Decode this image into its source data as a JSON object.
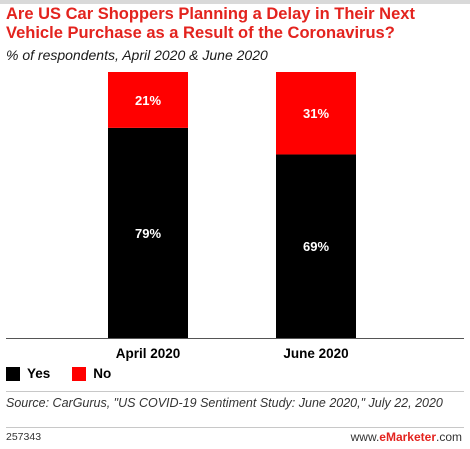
{
  "header": {
    "title": "Are US Car Shoppers Planning a Delay in Their Next Vehicle Purchase as a Result of the Coronavirus?",
    "subtitle": "% of respondents, April 2020 & June 2020"
  },
  "chart_data": {
    "type": "bar",
    "stacked": true,
    "categories": [
      "April 2020",
      "June 2020"
    ],
    "series": [
      {
        "name": "Yes",
        "values": [
          79,
          69
        ],
        "color": "#000000"
      },
      {
        "name": "No",
        "values": [
          21,
          31
        ],
        "color": "#ff0000"
      }
    ],
    "value_suffix": "%",
    "ylim": [
      0,
      100
    ],
    "grid": false,
    "legend_position": "bottom-left"
  },
  "legend": {
    "items": [
      {
        "label": "Yes",
        "color": "#000000"
      },
      {
        "label": "No",
        "color": "#ff0000"
      }
    ]
  },
  "footer": {
    "source": "Source: CarGurus, \"US COVID-19 Sentiment Study: June 2020,\" July 22, 2020",
    "id": "257343",
    "brand_prefix": "www.",
    "brand_name": "eMarketer",
    "brand_suffix": ".com"
  },
  "colors": {
    "title": "#e3231e",
    "accent": "#e3231e"
  }
}
